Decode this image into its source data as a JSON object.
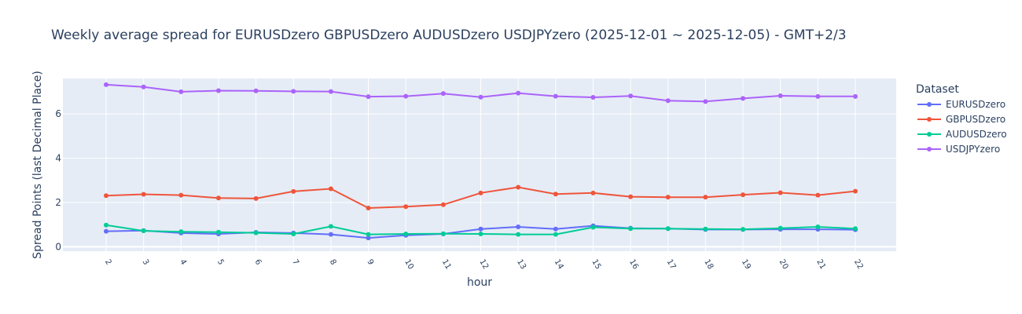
{
  "chart_data": {
    "type": "line",
    "title": "Weekly average spread for  EURUSDzero GBPUSDzero AUDUSDzero USDJPYzero (2025-12-01 ~ 2025-12-05) - GMT+2/3",
    "xlabel": "hour",
    "ylabel": "Spread Points (last Decimal Place)",
    "x": [
      2,
      3,
      4,
      5,
      6,
      7,
      8,
      9,
      10,
      11,
      12,
      13,
      14,
      15,
      16,
      17,
      18,
      19,
      20,
      21,
      22
    ],
    "y_ticks": [
      0,
      2,
      4,
      6
    ],
    "ylim": [
      -0.2,
      7.6
    ],
    "grid": true,
    "legend": {
      "title": "Dataset",
      "placement": "right"
    },
    "series": [
      {
        "name": "EURUSDzero",
        "color": "#636efa",
        "values": [
          0.7,
          0.73,
          0.62,
          0.58,
          0.65,
          0.62,
          0.56,
          0.4,
          0.52,
          0.58,
          0.8,
          0.9,
          0.8,
          0.95,
          0.84,
          0.82,
          0.78,
          0.78,
          0.79,
          0.79,
          0.77
        ]
      },
      {
        "name": "GBPUSDzero",
        "color": "#ef553b",
        "values": [
          2.31,
          2.37,
          2.33,
          2.2,
          2.18,
          2.5,
          2.62,
          1.75,
          1.81,
          1.9,
          2.43,
          2.69,
          2.38,
          2.43,
          2.26,
          2.24,
          2.24,
          2.35,
          2.44,
          2.33,
          2.51
        ]
      },
      {
        "name": "AUDUSDzero",
        "color": "#00cc96",
        "values": [
          0.98,
          0.72,
          0.68,
          0.66,
          0.63,
          0.58,
          0.92,
          0.56,
          0.58,
          0.59,
          0.58,
          0.56,
          0.56,
          0.88,
          0.82,
          0.82,
          0.8,
          0.79,
          0.84,
          0.9,
          0.82
        ]
      },
      {
        "name": "USDJPYzero",
        "color": "#ab63fa",
        "values": [
          7.32,
          7.22,
          7.0,
          7.05,
          7.04,
          7.02,
          7.01,
          6.78,
          6.8,
          6.92,
          6.76,
          6.94,
          6.8,
          6.75,
          6.81,
          6.6,
          6.56,
          6.7,
          6.82,
          6.79,
          6.79
        ]
      }
    ]
  }
}
